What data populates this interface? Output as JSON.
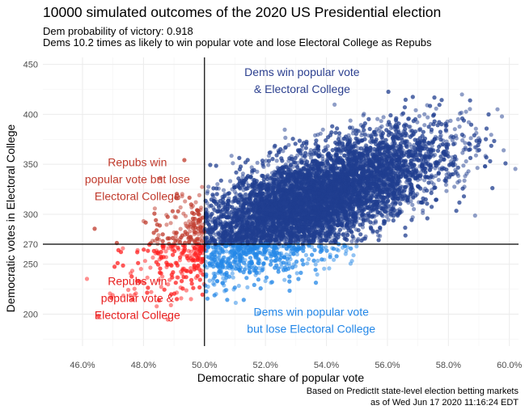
{
  "chart_data": {
    "type": "scatter",
    "title": "10000 simulated outcomes of the 2020 US Presidential election",
    "subtitles": [
      "Dem probability of victory: 0.918",
      "Dems 10.2 times as likely to win popular vote and lose Electoral College as Repubs"
    ],
    "xlabel": "Democratic share of popular vote",
    "ylabel": "Democratic votes in Electoral College",
    "xlim": [
      0.447,
      0.603
    ],
    "ylim": [
      168,
      457
    ],
    "x_ticks": [
      {
        "value": 0.46,
        "label": "46.0%"
      },
      {
        "value": 0.48,
        "label": "48.0%"
      },
      {
        "value": 0.5,
        "label": "50.0%"
      },
      {
        "value": 0.52,
        "label": "52.0%"
      },
      {
        "value": 0.54,
        "label": "54.0%"
      },
      {
        "value": 0.56,
        "label": "56.0%"
      },
      {
        "value": 0.58,
        "label": "58.0%"
      },
      {
        "value": 0.6,
        "label": "60.0%"
      }
    ],
    "y_ticks": [
      {
        "value": 200,
        "label": "200"
      },
      {
        "value": 250,
        "label": "250"
      },
      {
        "value": 270,
        "label": "270"
      },
      {
        "value": 300,
        "label": "300"
      },
      {
        "value": 350,
        "label": "350"
      },
      {
        "value": 400,
        "label": "400"
      },
      {
        "value": 450,
        "label": "450"
      }
    ],
    "reference_lines": {
      "x": 0.5,
      "y": 270
    },
    "grid": true,
    "legend": "none",
    "simulation": {
      "n": 10000,
      "x_mean": 0.535,
      "x_sd": 0.021,
      "y_mean": 313,
      "y_sd": 34,
      "correlation": 0.69
    },
    "series": [
      {
        "category": "dem-both",
        "color": "#1f3d8f"
      },
      {
        "category": "dem-popular-only",
        "color": "#2387e8"
      },
      {
        "category": "rep-popular-only",
        "color": "#c0392b"
      },
      {
        "category": "rep-both",
        "color": "#ff2020"
      }
    ],
    "annotations": [
      {
        "lines": [
          "Dems win popular vote",
          "& Electoral College"
        ],
        "x": 0.532,
        "y": 434,
        "color": "#2b3f8f"
      },
      {
        "lines": [
          "Repubs win",
          "popular vote but lose",
          "Electoral College"
        ],
        "x": 0.478,
        "y": 335,
        "color": "#c0392b"
      },
      {
        "lines": [
          "Repubs win",
          "popular vote &",
          "Electoral College"
        ],
        "x": 0.478,
        "y": 216,
        "color": "#e81d1d"
      },
      {
        "lines": [
          "Dems win popular vote",
          "but lose Electoral College"
        ],
        "x": 0.535,
        "y": 194,
        "color": "#2387e8"
      }
    ],
    "caption": [
      "Based on PredictIt state-level election betting markets",
      "as of Wed Jun 17 2020 11:16:24 EDT"
    ]
  }
}
